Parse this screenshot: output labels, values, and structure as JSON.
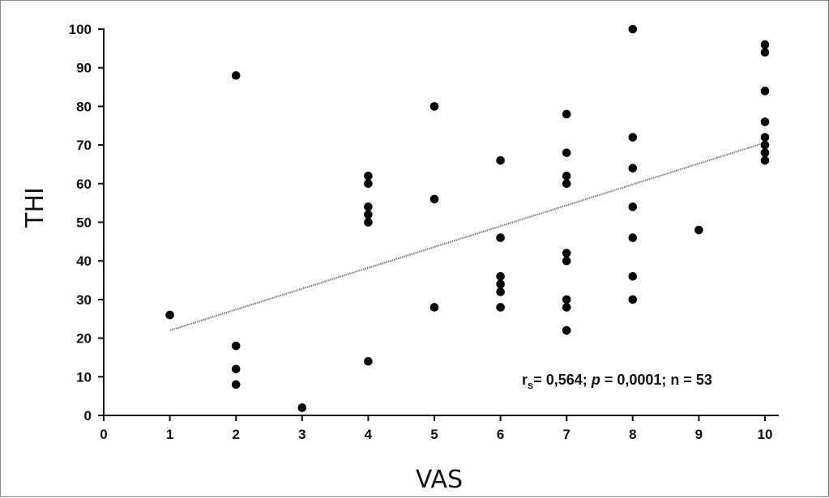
{
  "chart_data": {
    "type": "scatter",
    "xlabel": "VAS",
    "ylabel": "THI",
    "xlim": [
      0,
      10
    ],
    "ylim": [
      0,
      100
    ],
    "xticks": [
      "0",
      "1",
      "2",
      "3",
      "4",
      "5",
      "6",
      "7",
      "8",
      "9",
      "10"
    ],
    "yticks": [
      "0",
      "10",
      "20",
      "30",
      "40",
      "50",
      "60",
      "70",
      "80",
      "90",
      "100"
    ],
    "grid": false,
    "points": [
      [
        1,
        26
      ],
      [
        2,
        88
      ],
      [
        2,
        18
      ],
      [
        2,
        12
      ],
      [
        2,
        8
      ],
      [
        3,
        2
      ],
      [
        4,
        62
      ],
      [
        4,
        60
      ],
      [
        4,
        54
      ],
      [
        4,
        52
      ],
      [
        4,
        50
      ],
      [
        4,
        14
      ],
      [
        5,
        80
      ],
      [
        5,
        56
      ],
      [
        5,
        28
      ],
      [
        6,
        66
      ],
      [
        6,
        46
      ],
      [
        6,
        36
      ],
      [
        6,
        34
      ],
      [
        6,
        32
      ],
      [
        6,
        28
      ],
      [
        7,
        78
      ],
      [
        7,
        68
      ],
      [
        7,
        62
      ],
      [
        7,
        60
      ],
      [
        7,
        42
      ],
      [
        7,
        40
      ],
      [
        7,
        30
      ],
      [
        7,
        28
      ],
      [
        7,
        22
      ],
      [
        8,
        100
      ],
      [
        8,
        72
      ],
      [
        8,
        64
      ],
      [
        8,
        54
      ],
      [
        8,
        46
      ],
      [
        8,
        36
      ],
      [
        8,
        30
      ],
      [
        9,
        48
      ],
      [
        10,
        96
      ],
      [
        10,
        94
      ],
      [
        10,
        84
      ],
      [
        10,
        76
      ],
      [
        10,
        72
      ],
      [
        10,
        70
      ],
      [
        10,
        68
      ],
      [
        10,
        66
      ]
    ],
    "trendline": {
      "x": [
        1,
        10
      ],
      "y": [
        22,
        70.6
      ],
      "style": "dotted"
    },
    "annotation": {
      "r_label": "r",
      "r_sub": "s",
      "text_1": "= 0,564; ",
      "p_label": "p",
      "text_2": " = 0,0001; n = 53"
    },
    "colors": {
      "points": "#000000",
      "trendline": "#777777"
    }
  }
}
